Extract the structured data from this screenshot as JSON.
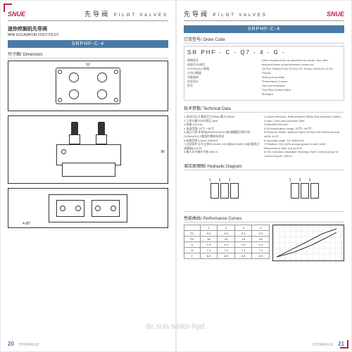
{
  "header": {
    "logo": "SNUE",
    "title_cn": "先导阀",
    "title_en": "PILOT VALVES"
  },
  "left": {
    "subtitle_cn": "迷你挖掘机先导阀",
    "subtitle_en": "MINI EXCAVATOR FOOT PILOT",
    "model": "SRPHF-C-4",
    "dimension_label": "尺寸图/ Dimension",
    "dims": {
      "w": "62",
      "h": "86",
      "d": "4-Ø7"
    },
    "pagenum": "20",
    "footer": "HYDRAULIK"
  },
  "right": {
    "model": "SRPHF-C-4",
    "order_label": "订货型号/ Order Code",
    "order_code": "SR PHF - C - Q7 - 4 - G -",
    "order_items_cn": [
      "规格型式",
      "连接方式/阀芯",
      "HYDRAULIC规格",
      "工作口数量",
      "功能曲线",
      "先导设计",
      "型号"
    ],
    "order_items_en": [
      "Other requirements as described by words. See other technical items at performance curves etc.",
      "Oil Port Thread Form G:G1/4 ED Thread. M:M14×1.5 ED Thread",
      "Work port quantity",
      "Performance Curves",
      "One-rod excavator",
      "Foot Pilot Control Valve",
      "Shengrui"
    ],
    "tech_label": "技术参数/ Technical Data",
    "tech_cn": [
      "1.进油口压力:额定压力35bar  最大100bar",
      "2.工作口最大允许背压:3bar",
      "3.流量:20L/min",
      "4.油温范围:-20℃~+80℃",
      "5.液压介质:矿物油(DIN51524)HLP级;磷酸酯不燃介质(VDMA24317)使用时需联系我司",
      "6.粘度范围:10mm²-380mm²",
      "7.过滤条件:至少达到ISO4406 19/16或NAS1638 10级,推荐过滤精度β10≥75",
      "8.最大允许操作力矩:80N·m"
    ],
    "tech_en": [
      "1.Import pressure: Rate pressure:35bar  Max pressure:100bar",
      "2.Max.T port back pressure:3bar",
      "3.Max.flow:20L/min",
      "4.Oil temperature range:-20℃~+80℃",
      "5.Pressure Media: Mineral Oil(HL,HLP)to DIN 51524 mineral oil(HL,HLP)",
      "6.Viscosity range: 10~380mm²/s",
      "7.Filtration: ISO 4406 at least grade of NAS 1638 Recommend: filter min β10≥75",
      "8.The maximum allowable Working a form Central torque of Control Spools: 80N·m"
    ],
    "hydraulic_label": "液压原理图/ Hydraulic Diagram",
    "perf_label": "性能曲线/ Performance Curves",
    "perf_table": {
      "rows": [
        [
          "",
          "1",
          "2",
          "3",
          "4"
        ],
        [
          "P1",
          "5.0",
          "5.0",
          "5.0",
          "5.0"
        ],
        [
          "P2",
          "18",
          "23",
          "18",
          "23"
        ],
        [
          "A",
          "1.9",
          "1.9",
          "1.9",
          "1.9"
        ],
        [
          "B",
          "7.4",
          "7.4",
          "7.4",
          "7.4"
        ],
        [
          "C",
          "8.5",
          "8.5",
          "8.5",
          "8.5"
        ]
      ]
    },
    "pagenum": "21",
    "footer": "HYDRAULIK"
  },
  "watermark": "de.sun-seiko-hyd.",
  "colors": {
    "accent": "#c41e3a",
    "bar": "#4a7ba6"
  }
}
